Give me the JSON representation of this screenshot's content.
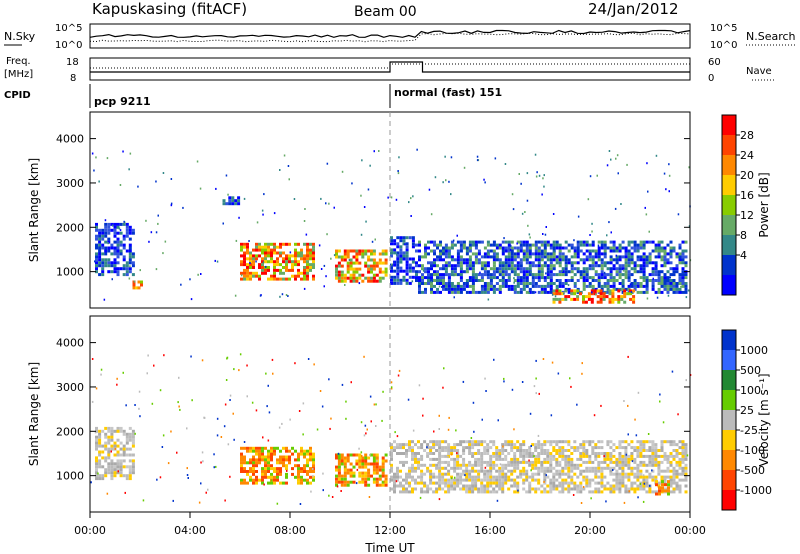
{
  "header": {
    "station": "Kapuskasing (fitACF)",
    "beam": "Beam 00",
    "date": "24/Jan/2012"
  },
  "noise_panel": {
    "left_label": "N.Sky",
    "right_label": "N.Search",
    "left_top_tick": "10^5",
    "left_bottom_tick": "10^0",
    "right_top_tick": "10^5",
    "right_bottom_tick": "10^0"
  },
  "freq_panel": {
    "left_label_top": "Freq.",
    "left_label_bottom": "[MHz]",
    "right_label": "Nave",
    "left_ticks": [
      "18",
      "8"
    ],
    "right_ticks": [
      "60",
      "0"
    ]
  },
  "cpid": {
    "label": "CPID",
    "segments": [
      {
        "start_hour": 0,
        "text": "pcp 9211"
      },
      {
        "start_hour": 12,
        "text": "normal (fast) 151"
      }
    ]
  },
  "power_panel": {
    "ylabel": "Slant Range [km]",
    "colorbar_label": "Power [dB]",
    "colorbar_ticks": [
      "28",
      "24",
      "20",
      "16",
      "12",
      "8",
      "4"
    ],
    "colorbar_colors": [
      "#ff0000",
      "#ff4400",
      "#ff8800",
      "#ffcc00",
      "#88cc00",
      "#66aa66",
      "#338888",
      "#0033cc",
      "#0000ff"
    ]
  },
  "velocity_panel": {
    "ylabel": "Slant Range [km]",
    "colorbar_label": "Velocity [m s⁻¹]",
    "colorbar_ticks": [
      "1000",
      "500",
      "100",
      "25",
      "-25",
      "-100",
      "-500",
      "-1000"
    ],
    "colorbar_colors": [
      "#0033cc",
      "#3366ff",
      "#228833",
      "#66cc00",
      "#bbbbbb",
      "#ffcc00",
      "#ff8800",
      "#ff4400",
      "#ff0000"
    ]
  },
  "x_axis": {
    "label": "Time UT",
    "ticks": [
      "00:00",
      "04:00",
      "08:00",
      "12:00",
      "16:00",
      "20:00",
      "00:00"
    ]
  },
  "chart_data": {
    "type": "heatmap",
    "x_range_hours": [
      0,
      24
    ],
    "y_range_km": [
      180,
      4600
    ],
    "y_ticks": [
      1000,
      2000,
      3000,
      4000
    ],
    "power_echo_regions": [
      {
        "t0": 0.2,
        "t1": 1.8,
        "r0": 900,
        "r1": 2100,
        "level": "low"
      },
      {
        "t0": 1.7,
        "t1": 2.1,
        "r0": 600,
        "r1": 800,
        "level": "high"
      },
      {
        "t0": 5.3,
        "t1": 6.0,
        "r0": 2500,
        "r1": 2700,
        "level": "low"
      },
      {
        "t0": 6.0,
        "t1": 9.0,
        "r0": 800,
        "r1": 1650,
        "level": "high"
      },
      {
        "t0": 9.8,
        "t1": 11.9,
        "r0": 750,
        "r1": 1500,
        "level": "high"
      },
      {
        "t0": 12.0,
        "t1": 13.0,
        "r0": 700,
        "r1": 1800,
        "level": "low"
      },
      {
        "t0": 13.0,
        "t1": 23.9,
        "r0": 500,
        "r1": 1700,
        "level": "mid"
      },
      {
        "t0": 18.5,
        "t1": 21.8,
        "r0": 280,
        "r1": 600,
        "level": "high"
      }
    ],
    "velocity_echo_regions": [
      {
        "t0": 0.2,
        "t1": 1.8,
        "r0": 900,
        "r1": 2100,
        "v": "near_zero"
      },
      {
        "t0": 6.0,
        "t1": 9.0,
        "r0": 800,
        "r1": 1650,
        "v": "negative"
      },
      {
        "t0": 9.8,
        "t1": 11.9,
        "r0": 750,
        "r1": 1500,
        "v": "negative"
      },
      {
        "t0": 12.0,
        "t1": 23.9,
        "r0": 600,
        "r1": 1800,
        "v": "near_zero"
      },
      {
        "t0": 22.6,
        "t1": 23.2,
        "r0": 550,
        "r1": 900,
        "v": "negative"
      }
    ],
    "noise": {
      "search_step_hour": 13.2,
      "before_level": "low",
      "after_level": "high"
    },
    "frequency": {
      "before_mhz": 10.5,
      "after_mhz": 10.5,
      "nave_before": 22,
      "nave_after": 40
    },
    "cpid_change_hour": 12
  }
}
